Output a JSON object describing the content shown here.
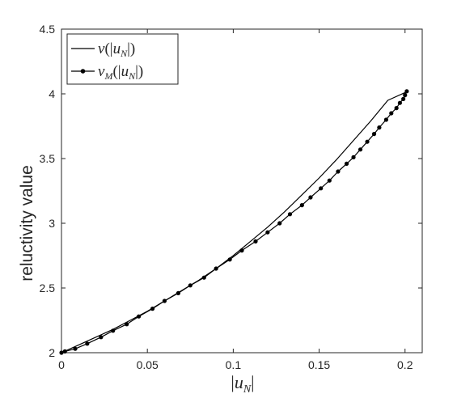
{
  "chart_data": {
    "type": "line",
    "xlabel": "|u_N|",
    "ylabel": "reluctivity value",
    "xlim": [
      0,
      0.21
    ],
    "ylim": [
      2,
      4.5
    ],
    "xticks": [
      0,
      0.05,
      0.1,
      0.15,
      0.2
    ],
    "xtick_labels": [
      "0",
      "0.05",
      "0.1",
      "0.15",
      "0.2"
    ],
    "yticks": [
      2,
      2.5,
      3,
      3.5,
      4,
      4.5
    ],
    "ytick_labels": [
      "2",
      "2.5",
      "3",
      "3.5",
      "4",
      "4.5"
    ],
    "grid": false,
    "legend_placement": "top-left",
    "series": [
      {
        "name": "ν(|u_N|)",
        "style": "line",
        "color": "#000000",
        "x": [
          0,
          0.01,
          0.02,
          0.03,
          0.04,
          0.05,
          0.06,
          0.07,
          0.08,
          0.09,
          0.1,
          0.11,
          0.12,
          0.13,
          0.14,
          0.15,
          0.16,
          0.17,
          0.18,
          0.19,
          0.2,
          0.201
        ],
        "y": [
          2.0,
          2.06,
          2.12,
          2.18,
          2.25,
          2.32,
          2.4,
          2.48,
          2.56,
          2.65,
          2.75,
          2.86,
          2.97,
          3.09,
          3.22,
          3.35,
          3.49,
          3.64,
          3.79,
          3.95,
          4.01,
          4.02
        ]
      },
      {
        "name": "ν_M(|u_N|)",
        "style": "line-marker",
        "color": "#000000",
        "x": [
          0,
          0.002,
          0.008,
          0.015,
          0.023,
          0.03,
          0.038,
          0.045,
          0.053,
          0.06,
          0.068,
          0.075,
          0.083,
          0.09,
          0.098,
          0.105,
          0.113,
          0.12,
          0.127,
          0.133,
          0.14,
          0.145,
          0.151,
          0.156,
          0.161,
          0.166,
          0.17,
          0.174,
          0.178,
          0.182,
          0.185,
          0.189,
          0.192,
          0.195,
          0.197,
          0.199,
          0.2,
          0.201
        ],
        "y": [
          2.0,
          2.01,
          2.03,
          2.07,
          2.12,
          2.17,
          2.22,
          2.28,
          2.34,
          2.4,
          2.46,
          2.52,
          2.58,
          2.65,
          2.72,
          2.79,
          2.86,
          2.93,
          3.0,
          3.07,
          3.14,
          3.2,
          3.27,
          3.33,
          3.4,
          3.46,
          3.51,
          3.57,
          3.63,
          3.69,
          3.74,
          3.8,
          3.85,
          3.89,
          3.93,
          3.96,
          3.99,
          4.02
        ]
      }
    ]
  }
}
